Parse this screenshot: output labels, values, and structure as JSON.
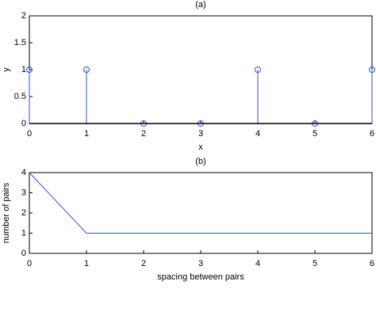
{
  "chart_data": [
    {
      "type": "stem",
      "title": "(a)",
      "x_label": "x",
      "y_label": "y",
      "x": [
        0,
        1,
        2,
        3,
        4,
        5,
        6
      ],
      "values": [
        1,
        1,
        0,
        0,
        1,
        0,
        1
      ],
      "color": "#3050e0",
      "xlim": [
        0,
        6
      ],
      "ylim": [
        0,
        2
      ],
      "xticks": [
        0,
        1,
        2,
        3,
        4,
        5,
        6
      ],
      "yticks": [
        0,
        0.5,
        1,
        1.5,
        2
      ]
    },
    {
      "type": "line",
      "title": "(b)",
      "x_label": "spacing between pairs",
      "y_label": "number of pairs",
      "x": [
        0,
        1,
        2,
        3,
        4,
        5,
        6
      ],
      "values": [
        4,
        1,
        1,
        1,
        1,
        1,
        1
      ],
      "color": "#3050e0",
      "xlim": [
        0,
        6
      ],
      "ylim": [
        0,
        4
      ],
      "xticks": [
        0,
        1,
        2,
        3,
        4,
        5,
        6
      ],
      "yticks": [
        0,
        1,
        2,
        3,
        4
      ]
    }
  ]
}
